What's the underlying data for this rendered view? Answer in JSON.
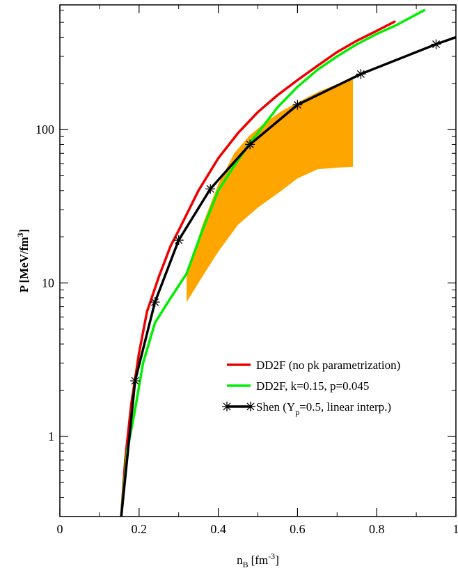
{
  "chart_data": {
    "type": "line",
    "xlabel": "n",
    "xlabel_sub": "B",
    "xlabel_unit": "[fm",
    "xlabel_sup": "-3",
    "xlabel_close": "]",
    "ylabel": "P [MeV/fm",
    "ylabel_sup": "3",
    "ylabel_close": "]",
    "xlim": [
      0,
      1
    ],
    "ylim": [
      0.3,
      650
    ],
    "yscale": "log",
    "grid": false,
    "legend_position": "lower-right",
    "xticks": [
      {
        "value": 0,
        "label": "0"
      },
      {
        "value": 0.2,
        "label": "0.2"
      },
      {
        "value": 0.4,
        "label": "0.4"
      },
      {
        "value": 0.6,
        "label": "0.6"
      },
      {
        "value": 0.8,
        "label": "0.8"
      },
      {
        "value": 1,
        "label": "1"
      }
    ],
    "yticks": [
      {
        "value": 1,
        "label": "1"
      },
      {
        "value": 10,
        "label": "10"
      },
      {
        "value": 100,
        "label": "100"
      }
    ],
    "legend": [
      {
        "text": "DD2F (no pk parametrization)",
        "color": "#ee0000",
        "marker": false
      },
      {
        "text": "DD2F, k=0.15, p=0.045",
        "color": "#00ee00",
        "marker": false
      },
      {
        "text": "Shen (Y",
        "sub": "p",
        "tail": "=0.5, linear interp.)",
        "color": "#000000",
        "marker": true
      }
    ],
    "band": {
      "color": "#ffa500",
      "upper": [
        [
          0.32,
          11.0
        ],
        [
          0.36,
          24.0
        ],
        [
          0.4,
          44.0
        ],
        [
          0.44,
          70.0
        ],
        [
          0.48,
          92.0
        ],
        [
          0.52,
          112.0
        ],
        [
          0.56,
          132.0
        ],
        [
          0.6,
          150.0
        ],
        [
          0.65,
          175.0
        ],
        [
          0.7,
          198.0
        ],
        [
          0.74,
          215.0
        ]
      ],
      "lower": [
        [
          0.74,
          57.0
        ],
        [
          0.7,
          56.5
        ],
        [
          0.65,
          55.0
        ],
        [
          0.6,
          48.0
        ],
        [
          0.56,
          40.0
        ],
        [
          0.5,
          31.0
        ],
        [
          0.45,
          24.0
        ],
        [
          0.4,
          16.0
        ],
        [
          0.36,
          11.0
        ],
        [
          0.32,
          7.5
        ]
      ]
    },
    "series": [
      {
        "color": "#ee0000",
        "points": [
          [
            0.155,
            0.3
          ],
          [
            0.165,
            0.7
          ],
          [
            0.18,
            1.6
          ],
          [
            0.2,
            3.5
          ],
          [
            0.22,
            6.5
          ],
          [
            0.25,
            11.0
          ],
          [
            0.28,
            17.5
          ],
          [
            0.3,
            22.0
          ],
          [
            0.35,
            40.0
          ],
          [
            0.4,
            65.0
          ],
          [
            0.45,
            95.0
          ],
          [
            0.5,
            130.0
          ],
          [
            0.55,
            168.0
          ],
          [
            0.6,
            210.0
          ],
          [
            0.65,
            260.0
          ],
          [
            0.7,
            320.0
          ],
          [
            0.75,
            380.0
          ],
          [
            0.8,
            440.0
          ],
          [
            0.845,
            505.0
          ]
        ]
      },
      {
        "color": "#00ee00",
        "points": [
          [
            0.155,
            0.3
          ],
          [
            0.17,
            0.8
          ],
          [
            0.19,
            1.5
          ],
          [
            0.21,
            3.0
          ],
          [
            0.24,
            5.5
          ],
          [
            0.28,
            8.0
          ],
          [
            0.32,
            11.5
          ],
          [
            0.36,
            22.0
          ],
          [
            0.4,
            40.0
          ],
          [
            0.44,
            58.0
          ],
          [
            0.48,
            82.0
          ],
          [
            0.5,
            95.0
          ],
          [
            0.55,
            140.0
          ],
          [
            0.6,
            190.0
          ],
          [
            0.65,
            245.0
          ],
          [
            0.7,
            300.0
          ],
          [
            0.75,
            360.0
          ],
          [
            0.8,
            420.0
          ],
          [
            0.85,
            480.0
          ],
          [
            0.92,
            600.0
          ]
        ]
      },
      {
        "color": "#000000",
        "markers": true,
        "points": [
          [
            0.155,
            0.3
          ],
          [
            0.19,
            2.3
          ],
          [
            0.24,
            7.5
          ],
          [
            0.3,
            19.0
          ],
          [
            0.38,
            41.0
          ],
          [
            0.48,
            80.0
          ],
          [
            0.6,
            145.0
          ],
          [
            0.76,
            230.0
          ],
          [
            0.95,
            360.0
          ],
          [
            1.0,
            400.0
          ]
        ]
      }
    ]
  }
}
